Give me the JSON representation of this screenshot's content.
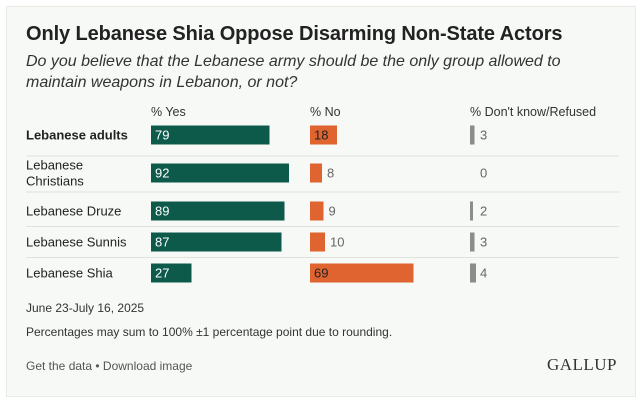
{
  "title": "Only Lebanese Shia Oppose Disarming Non-State Actors",
  "subtitle": "Do you believe that the Lebanese army should be the only group allowed to maintain weapons in Lebanon, or not?",
  "colors": {
    "yes": "#0d5a4b",
    "no": "#e0642f",
    "dk": "#8c8c8c"
  },
  "chart_data": {
    "type": "bar",
    "categories": [
      "Lebanese adults",
      "Lebanese Christians",
      "Lebanese Druze",
      "Lebanese Sunnis",
      "Lebanese Shia"
    ],
    "category_lines": [
      [
        "Lebanese adults"
      ],
      [
        "Lebanese",
        "Christians"
      ],
      [
        "Lebanese Druze"
      ],
      [
        "Lebanese Sunnis"
      ],
      [
        "Lebanese Shia"
      ]
    ],
    "bold_category": "Lebanese adults",
    "series": [
      {
        "name": "% Yes",
        "values": [
          79,
          92,
          89,
          87,
          27
        ]
      },
      {
        "name": "% No",
        "values": [
          18,
          8,
          9,
          10,
          69
        ]
      },
      {
        "name": "% Don't know/Refused",
        "values": [
          3,
          0,
          2,
          3,
          4
        ]
      }
    ],
    "xlim": [
      0,
      100
    ]
  },
  "date": "June 23-July 16, 2025",
  "note": "Percentages may sum to 100% ±1 percentage point due to rounding.",
  "footer": {
    "get_data": "Get the data",
    "separator": " • ",
    "download": "Download image"
  },
  "logo": "GALLUP"
}
